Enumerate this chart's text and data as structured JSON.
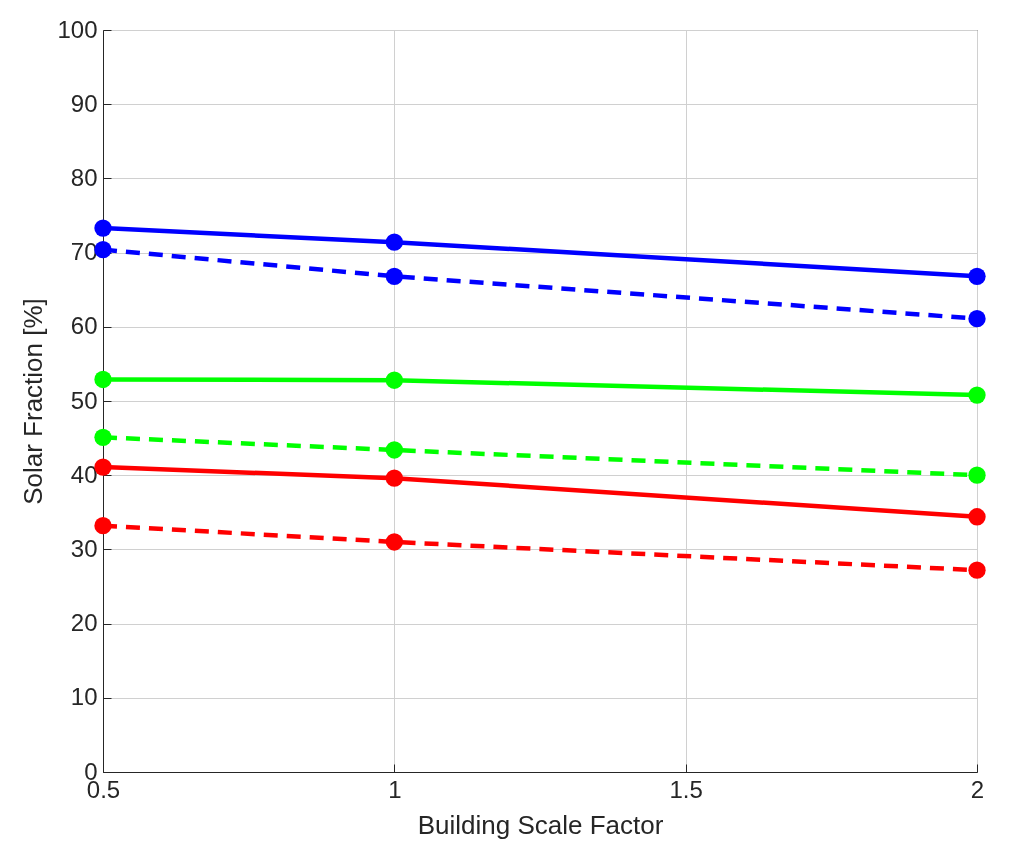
{
  "chart_data": {
    "type": "line",
    "xlabel": "Building Scale Factor",
    "ylabel": "Solar Fraction [%]",
    "x": [
      0.5,
      1,
      2
    ],
    "series": [
      {
        "color": "#0000ff",
        "line_style": "solid",
        "values": [
          73.3,
          71.4,
          66.8
        ]
      },
      {
        "color": "#0000ff",
        "line_style": "dashed",
        "values": [
          70.4,
          66.8,
          61.1
        ]
      },
      {
        "color": "#00ff00",
        "line_style": "solid",
        "values": [
          52.9,
          52.8,
          50.8
        ]
      },
      {
        "color": "#00ff00",
        "line_style": "dashed",
        "values": [
          45.1,
          43.4,
          40.0
        ]
      },
      {
        "color": "#ff0000",
        "line_style": "solid",
        "values": [
          41.1,
          39.6,
          34.4
        ]
      },
      {
        "color": "#ff0000",
        "line_style": "dashed",
        "values": [
          33.2,
          31.0,
          27.2
        ]
      }
    ],
    "xlim": [
      0.5,
      2
    ],
    "xticks": [
      0.5,
      1,
      1.5,
      2
    ],
    "ylim": [
      0,
      100
    ],
    "yticks": [
      0,
      10,
      20,
      30,
      40,
      50,
      60,
      70,
      80,
      90,
      100
    ],
    "grid": true,
    "marker": "circle"
  }
}
